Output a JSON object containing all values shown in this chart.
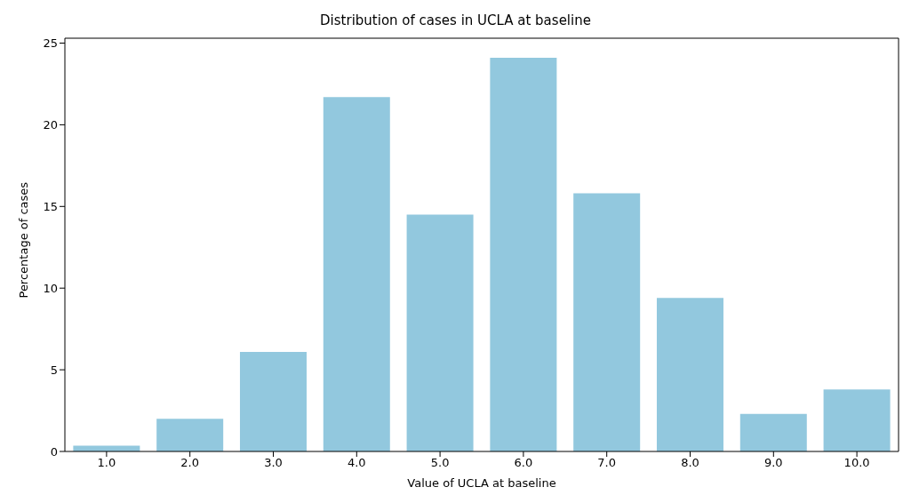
{
  "chart_data": {
    "type": "bar",
    "title": "Distribution of cases in UCLA at baseline",
    "xlabel": "Value of UCLA at baseline",
    "ylabel": "Percentage of cases",
    "categories": [
      "1.0",
      "2.0",
      "3.0",
      "4.0",
      "5.0",
      "6.0",
      "7.0",
      "8.0",
      "9.0",
      "10.0"
    ],
    "values": [
      0.35,
      2.0,
      6.1,
      21.7,
      14.5,
      24.1,
      15.8,
      9.4,
      2.3,
      3.8
    ],
    "color": "#92c8de",
    "ylim": [
      0,
      25.3
    ],
    "yticks": [
      0,
      5,
      10,
      15,
      20,
      25
    ]
  }
}
